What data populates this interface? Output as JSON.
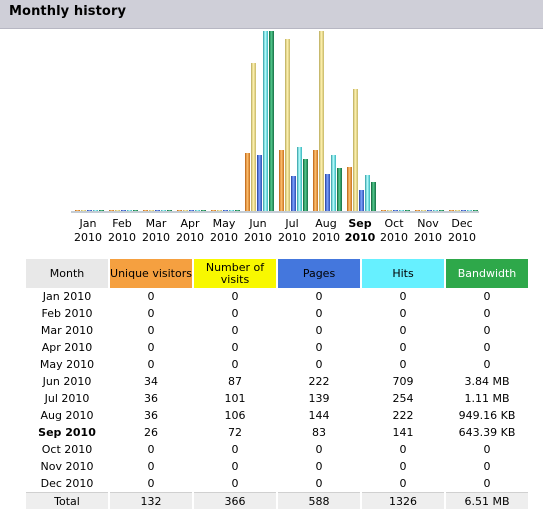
{
  "header": {
    "title": "Monthly history"
  },
  "colors": {
    "visitors": "#f5a040",
    "visits": "#f8f800",
    "pages": "#4477dd",
    "hits": "#66f0ff",
    "bandwidth": "#2ea84a",
    "month_header": "#e8e8e8"
  },
  "chart_data": {
    "type": "bar",
    "categories": [
      {
        "month": "Jan",
        "year": "2010",
        "bold": false
      },
      {
        "month": "Feb",
        "year": "2010",
        "bold": false
      },
      {
        "month": "Mar",
        "year": "2010",
        "bold": false
      },
      {
        "month": "Apr",
        "year": "2010",
        "bold": false
      },
      {
        "month": "May",
        "year": "2010",
        "bold": false
      },
      {
        "month": "Jun",
        "year": "2010",
        "bold": false
      },
      {
        "month": "Jul",
        "year": "2010",
        "bold": false
      },
      {
        "month": "Aug",
        "year": "2010",
        "bold": false
      },
      {
        "month": "Sep",
        "year": "2010",
        "bold": true
      },
      {
        "month": "Oct",
        "year": "2010",
        "bold": false
      },
      {
        "month": "Nov",
        "year": "2010",
        "bold": false
      },
      {
        "month": "Dec",
        "year": "2010",
        "bold": false
      }
    ],
    "series": [
      {
        "key": "visitors",
        "scale_group": "visits",
        "values": [
          0,
          0,
          0,
          0,
          0,
          34,
          36,
          36,
          26,
          0,
          0,
          0
        ]
      },
      {
        "key": "visits",
        "scale_group": "visits",
        "values": [
          0,
          0,
          0,
          0,
          0,
          87,
          101,
          106,
          72,
          0,
          0,
          0
        ]
      },
      {
        "key": "pages",
        "scale_group": "hits",
        "values": [
          0,
          0,
          0,
          0,
          0,
          222,
          139,
          144,
          83,
          0,
          0,
          0
        ]
      },
      {
        "key": "hits",
        "scale_group": "hits",
        "values": [
          0,
          0,
          0,
          0,
          0,
          709,
          254,
          222,
          141,
          0,
          0,
          0
        ]
      },
      {
        "key": "bandwidth_kb",
        "scale_group": "bandwidth",
        "values": [
          0,
          0,
          0,
          0,
          0,
          3932,
          1137,
          949.16,
          643.39,
          0,
          0,
          0
        ]
      }
    ]
  },
  "table": {
    "headers": [
      "Month",
      "Unique visitors",
      "Number of visits",
      "Pages",
      "Hits",
      "Bandwidth"
    ],
    "rows": [
      {
        "month": "Jan 2010",
        "visitors": "0",
        "visits": "0",
        "pages": "0",
        "hits": "0",
        "bandwidth": "0",
        "bold": false
      },
      {
        "month": "Feb 2010",
        "visitors": "0",
        "visits": "0",
        "pages": "0",
        "hits": "0",
        "bandwidth": "0",
        "bold": false
      },
      {
        "month": "Mar 2010",
        "visitors": "0",
        "visits": "0",
        "pages": "0",
        "hits": "0",
        "bandwidth": "0",
        "bold": false
      },
      {
        "month": "Apr 2010",
        "visitors": "0",
        "visits": "0",
        "pages": "0",
        "hits": "0",
        "bandwidth": "0",
        "bold": false
      },
      {
        "month": "May 2010",
        "visitors": "0",
        "visits": "0",
        "pages": "0",
        "hits": "0",
        "bandwidth": "0",
        "bold": false
      },
      {
        "month": "Jun 2010",
        "visitors": "34",
        "visits": "87",
        "pages": "222",
        "hits": "709",
        "bandwidth": "3.84 MB",
        "bold": false
      },
      {
        "month": "Jul 2010",
        "visitors": "36",
        "visits": "101",
        "pages": "139",
        "hits": "254",
        "bandwidth": "1.11 MB",
        "bold": false
      },
      {
        "month": "Aug 2010",
        "visitors": "36",
        "visits": "106",
        "pages": "144",
        "hits": "222",
        "bandwidth": "949.16 KB",
        "bold": false
      },
      {
        "month": "Sep 2010",
        "visitors": "26",
        "visits": "72",
        "pages": "83",
        "hits": "141",
        "bandwidth": "643.39 KB",
        "bold": true
      },
      {
        "month": "Oct 2010",
        "visitors": "0",
        "visits": "0",
        "pages": "0",
        "hits": "0",
        "bandwidth": "0",
        "bold": false
      },
      {
        "month": "Nov 2010",
        "visitors": "0",
        "visits": "0",
        "pages": "0",
        "hits": "0",
        "bandwidth": "0",
        "bold": false
      },
      {
        "month": "Dec 2010",
        "visitors": "0",
        "visits": "0",
        "pages": "0",
        "hits": "0",
        "bandwidth": "0",
        "bold": false
      }
    ],
    "total": {
      "label": "Total",
      "visitors": "132",
      "visits": "366",
      "pages": "588",
      "hits": "1326",
      "bandwidth": "6.51 MB"
    }
  }
}
